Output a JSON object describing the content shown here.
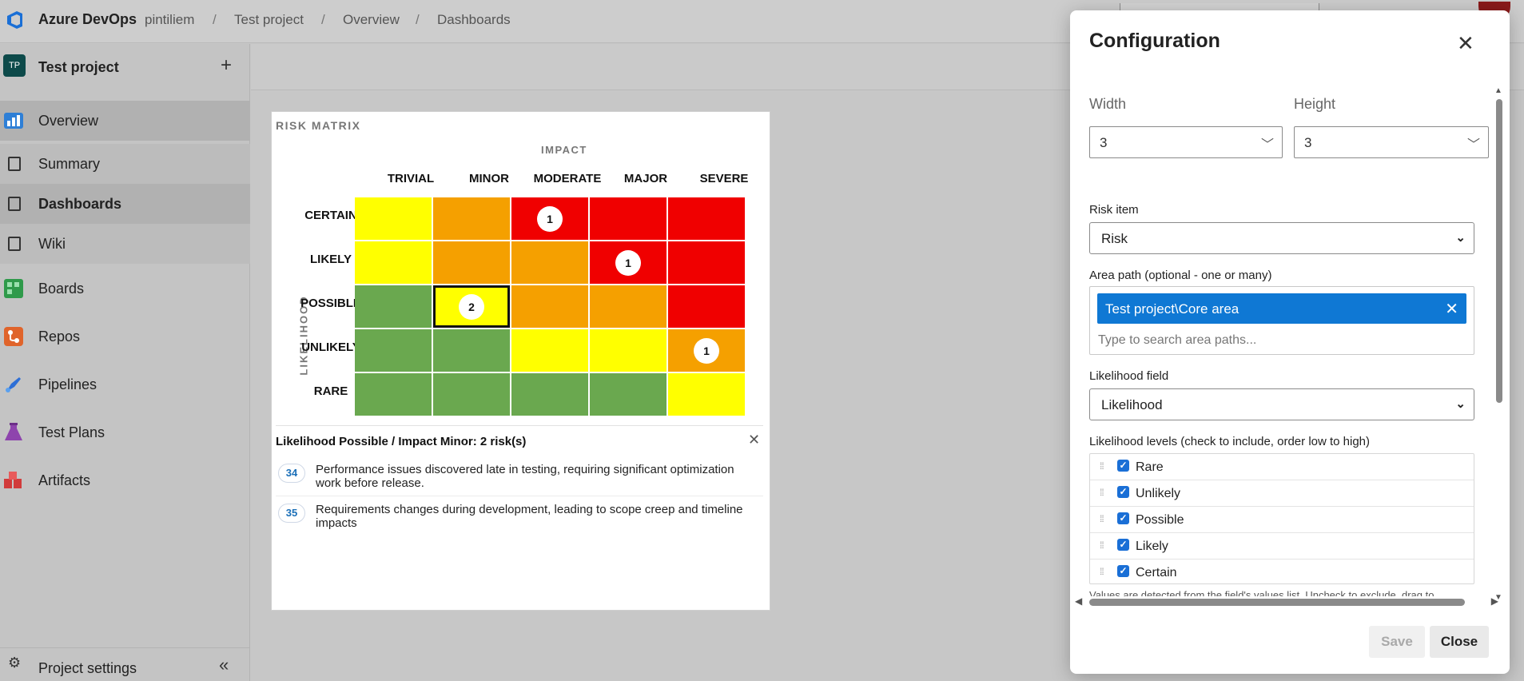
{
  "topbar": {
    "brand": "Azure DevOps",
    "breadcrumbs": [
      "pintiliem",
      "Test project",
      "Overview",
      "Dashboards"
    ],
    "separator": "/"
  },
  "sidebar": {
    "project_avatar": "TP",
    "project_name": "Test project",
    "add_symbol": "+",
    "items": [
      {
        "label": "Overview",
        "icon": "overview-icon"
      },
      {
        "label": "Summary",
        "icon": "summary-icon"
      },
      {
        "label": "Dashboards",
        "icon": "dashboards-icon"
      },
      {
        "label": "Wiki",
        "icon": "wiki-icon"
      },
      {
        "label": "Boards",
        "icon": "boards-icon"
      },
      {
        "label": "Repos",
        "icon": "repos-icon"
      },
      {
        "label": "Pipelines",
        "icon": "pipelines-icon"
      },
      {
        "label": "Test Plans",
        "icon": "test-plans-icon"
      },
      {
        "label": "Artifacts",
        "icon": "artifacts-icon"
      }
    ],
    "settings_label": "Project settings",
    "collapse_symbol": "«"
  },
  "widget": {
    "title": "RISK MATRIX",
    "impact_label": "IMPACT",
    "likelihood_label": "LIKELIHOOD",
    "columns": [
      "TRIVIAL",
      "MINOR",
      "MODERATE",
      "MAJOR",
      "SEVERE"
    ],
    "rows": [
      "CERTAIN",
      "LIKELY",
      "POSSIBLE",
      "UNLIKELY",
      "RARE"
    ],
    "cells": [
      [
        {
          "color": "yellow"
        },
        {
          "color": "orange"
        },
        {
          "color": "red",
          "count": "1"
        },
        {
          "color": "red"
        },
        {
          "color": "red"
        }
      ],
      [
        {
          "color": "yellow"
        },
        {
          "color": "orange"
        },
        {
          "color": "orange"
        },
        {
          "color": "red",
          "count": "1"
        },
        {
          "color": "red"
        }
      ],
      [
        {
          "color": "green"
        },
        {
          "color": "yellow",
          "count": "2",
          "selected": true
        },
        {
          "color": "orange"
        },
        {
          "color": "orange"
        },
        {
          "color": "red"
        }
      ],
      [
        {
          "color": "green"
        },
        {
          "color": "green"
        },
        {
          "color": "yellow"
        },
        {
          "color": "yellow"
        },
        {
          "color": "orange",
          "count": "1"
        }
      ],
      [
        {
          "color": "green"
        },
        {
          "color": "green"
        },
        {
          "color": "green"
        },
        {
          "color": "green"
        },
        {
          "color": "yellow"
        }
      ]
    ],
    "detail_title": "Likelihood Possible / Impact Minor: 2 risk(s)",
    "detail_close": "✕",
    "risks": [
      {
        "id": "34",
        "text": "Performance issues discovered late in testing, requiring significant optimization work before release."
      },
      {
        "id": "35",
        "text": "Requirements changes during development, leading to scope creep and timeline impacts"
      }
    ]
  },
  "config": {
    "title": "Configuration",
    "close_symbol": "✕",
    "width_label": "Width",
    "width_value": "3",
    "height_label": "Height",
    "height_value": "3",
    "risk_item_label": "Risk item",
    "risk_item_value": "Risk",
    "area_path_label": "Area path (optional - one or many)",
    "area_tag": "Test project\\Core area",
    "area_placeholder": "Type to search area paths...",
    "likelihood_field_label": "Likelihood field",
    "likelihood_field_value": "Likelihood",
    "levels_label": "Likelihood levels (check to include, order low to high)",
    "levels": [
      "Rare",
      "Unlikely",
      "Possible",
      "Likely",
      "Certain"
    ],
    "hint": "Values are detected from the field's values list. Uncheck to exclude, drag to",
    "save_label": "Save",
    "close_label": "Close"
  },
  "colors": {
    "yellow": "#ffff00",
    "orange": "#f5a000",
    "red": "#f00000",
    "green": "#6aa84f",
    "accent": "#0f78d4"
  }
}
